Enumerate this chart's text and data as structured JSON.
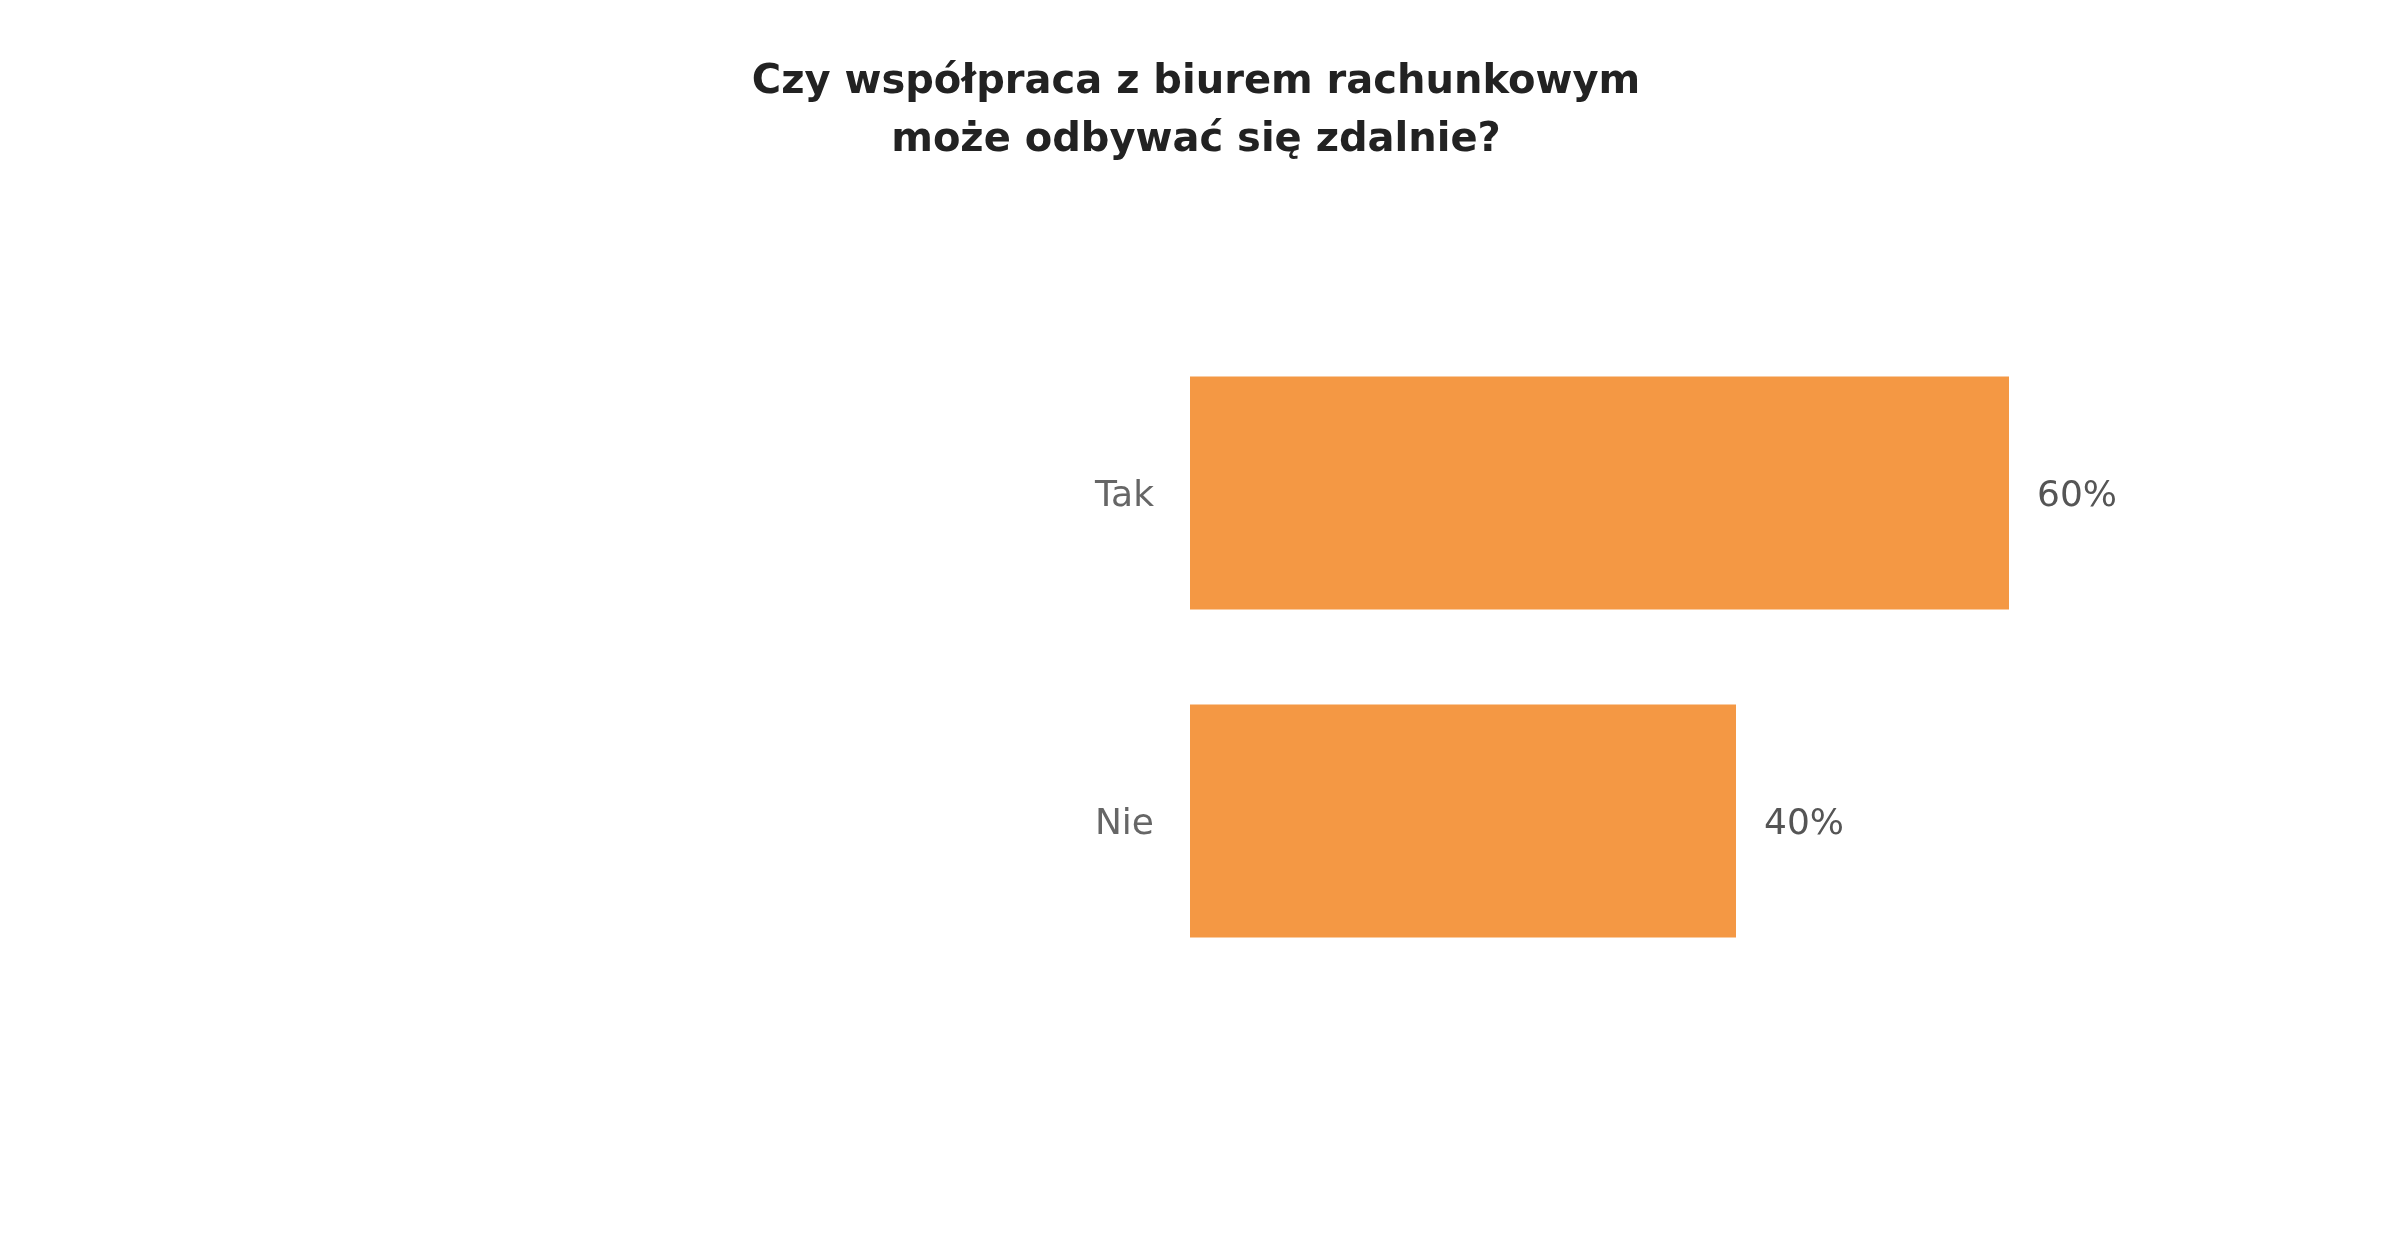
{
  "chart_data": {
    "type": "bar",
    "orientation": "horizontal",
    "title": "Czy współpraca z biurem rachunkowym\nmoże odbywać się zdalnie?",
    "categories": [
      "Tak",
      "Nie"
    ],
    "values": [
      60,
      40
    ],
    "color": "#f49844",
    "value_labels": [
      "60%",
      "40%"
    ]
  }
}
